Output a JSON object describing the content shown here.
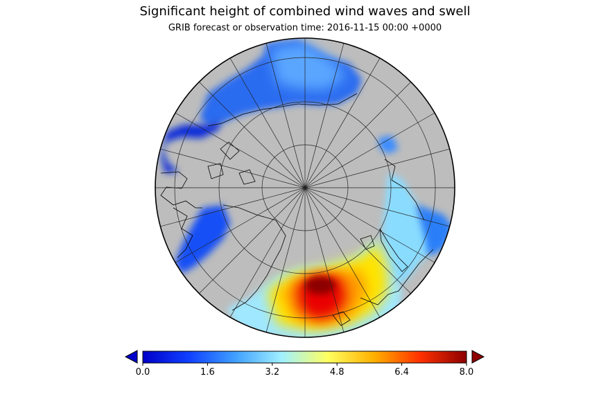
{
  "header": {
    "title": "Significant height of combined wind waves and swell",
    "subtitle": "GRIB forecast or observation time: 2016-11-15 00:00 +0000"
  },
  "map": {
    "projection": "north-polar-stereographic",
    "land_color": "#bdbdbd",
    "coastline_color": "#000000"
  },
  "colorbar": {
    "min": 0.0,
    "max": 8.0,
    "extend": "both",
    "ticks": [
      "0.0",
      "1.6",
      "3.2",
      "4.8",
      "6.4",
      "8.0"
    ],
    "stops": [
      "#0000c8",
      "#1040ff",
      "#40a0ff",
      "#a0f0ff",
      "#ffff60",
      "#ffb000",
      "#ff3000",
      "#8c0000"
    ]
  },
  "chart_data": {
    "type": "heatmap",
    "title": "Significant height of combined wind waves and swell",
    "subtitle": "GRIB forecast or observation time: 2016-11-15 00:00 +0000",
    "colorbar_range": [
      0.0,
      8.0
    ],
    "colorbar_ticks": [
      0.0,
      1.6,
      3.2,
      4.8,
      6.4,
      8.0
    ]
  }
}
